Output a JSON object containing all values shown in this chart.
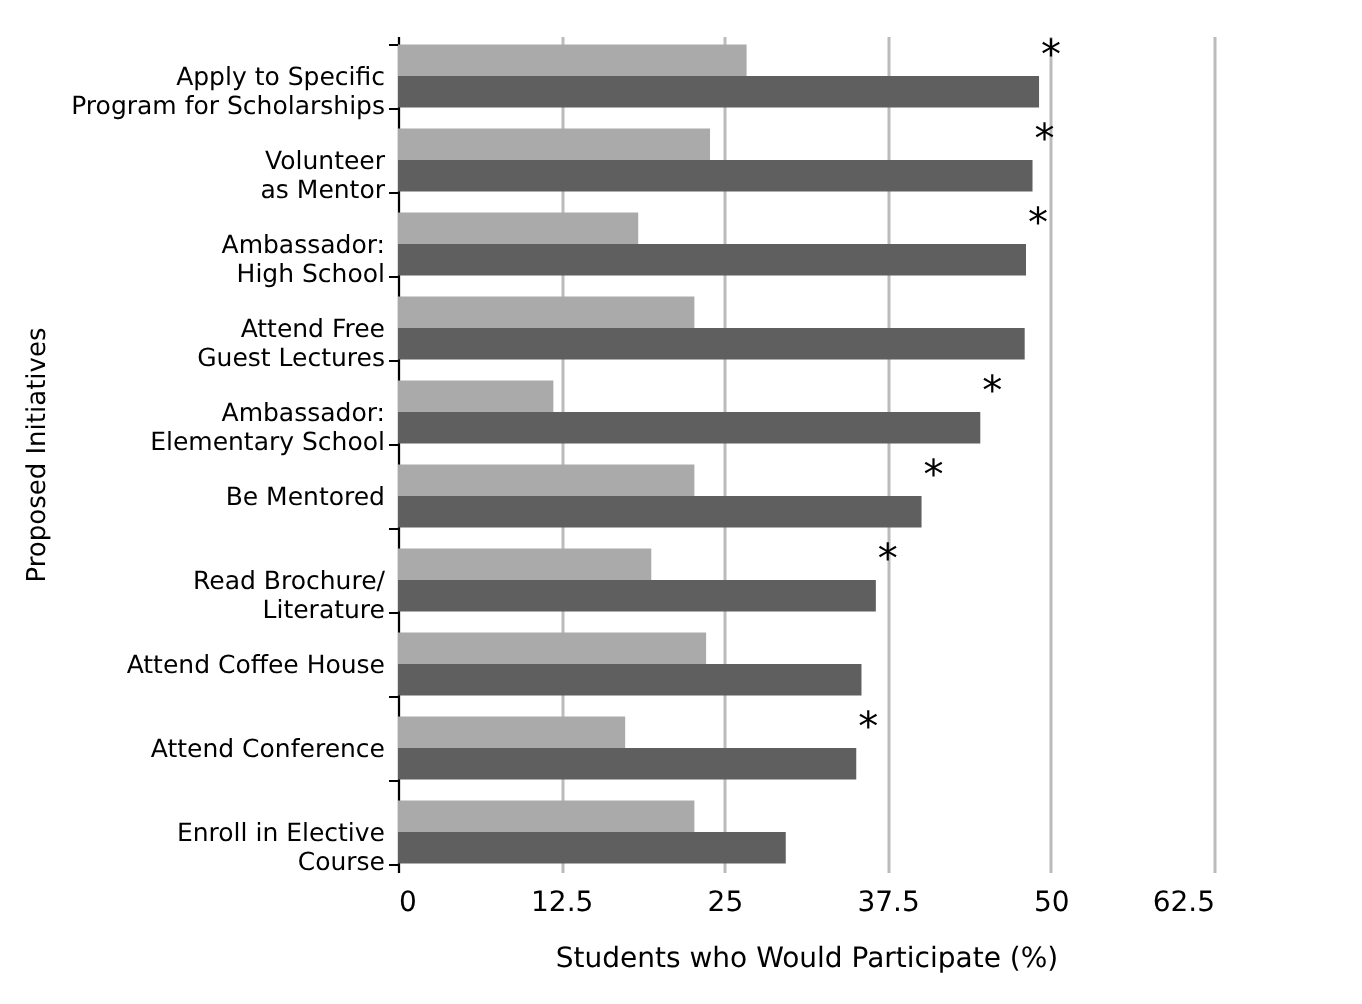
{
  "chart_data": {
    "type": "bar",
    "orientation": "horizontal",
    "xlabel": "Students who Would Participate (%)",
    "ylabel": "Proposed Initiatives",
    "categories": [
      "Apply to Specific\nProgram for Scholarships",
      "Volunteer\nas Mentor",
      "Ambassador:\nHigh School",
      "Attend Free\nGuest Lectures",
      "Ambassador:\nElementary School",
      "Be Mentored",
      "Read Brochure/\nLiterature",
      "Attend Coffee House",
      "Attend Conference",
      "Enroll in Elective\nCourse"
    ],
    "series": [
      {
        "color": "#aaaaaa",
        "values": [
          26.7,
          23.9,
          18.4,
          22.7,
          11.9,
          22.7,
          19.4,
          23.6,
          17.4,
          22.7
        ]
      },
      {
        "color": "#5f5f5f",
        "values": [
          49.1,
          48.6,
          48.1,
          48.0,
          44.6,
          40.1,
          36.6,
          35.5,
          35.1,
          29.7
        ]
      }
    ],
    "xlim": [
      0,
      62.5
    ],
    "xticks": [
      0,
      12.5,
      25,
      37.5,
      50,
      62.5
    ],
    "grid": "x",
    "annotations": [
      {
        "text": "*",
        "x": 49.1,
        "y": "Apply to Specific\nProgram for Scholarships"
      },
      {
        "text": "*",
        "x": 48.6,
        "y": "Volunteer\nas Mentor"
      },
      {
        "text": "*",
        "x": 48.1,
        "y": "Ambassador:\nHigh School"
      },
      {
        "text": "*",
        "x": 44.6,
        "y": "Ambassador:\nElementary School"
      },
      {
        "text": "*",
        "x": 40.1,
        "y": "Be Mentored"
      },
      {
        "text": "*",
        "x": 36.6,
        "y": "Read Brochure/\nLiterature"
      },
      {
        "text": "*",
        "x": 35.1,
        "y": "Attend Conference"
      }
    ]
  }
}
